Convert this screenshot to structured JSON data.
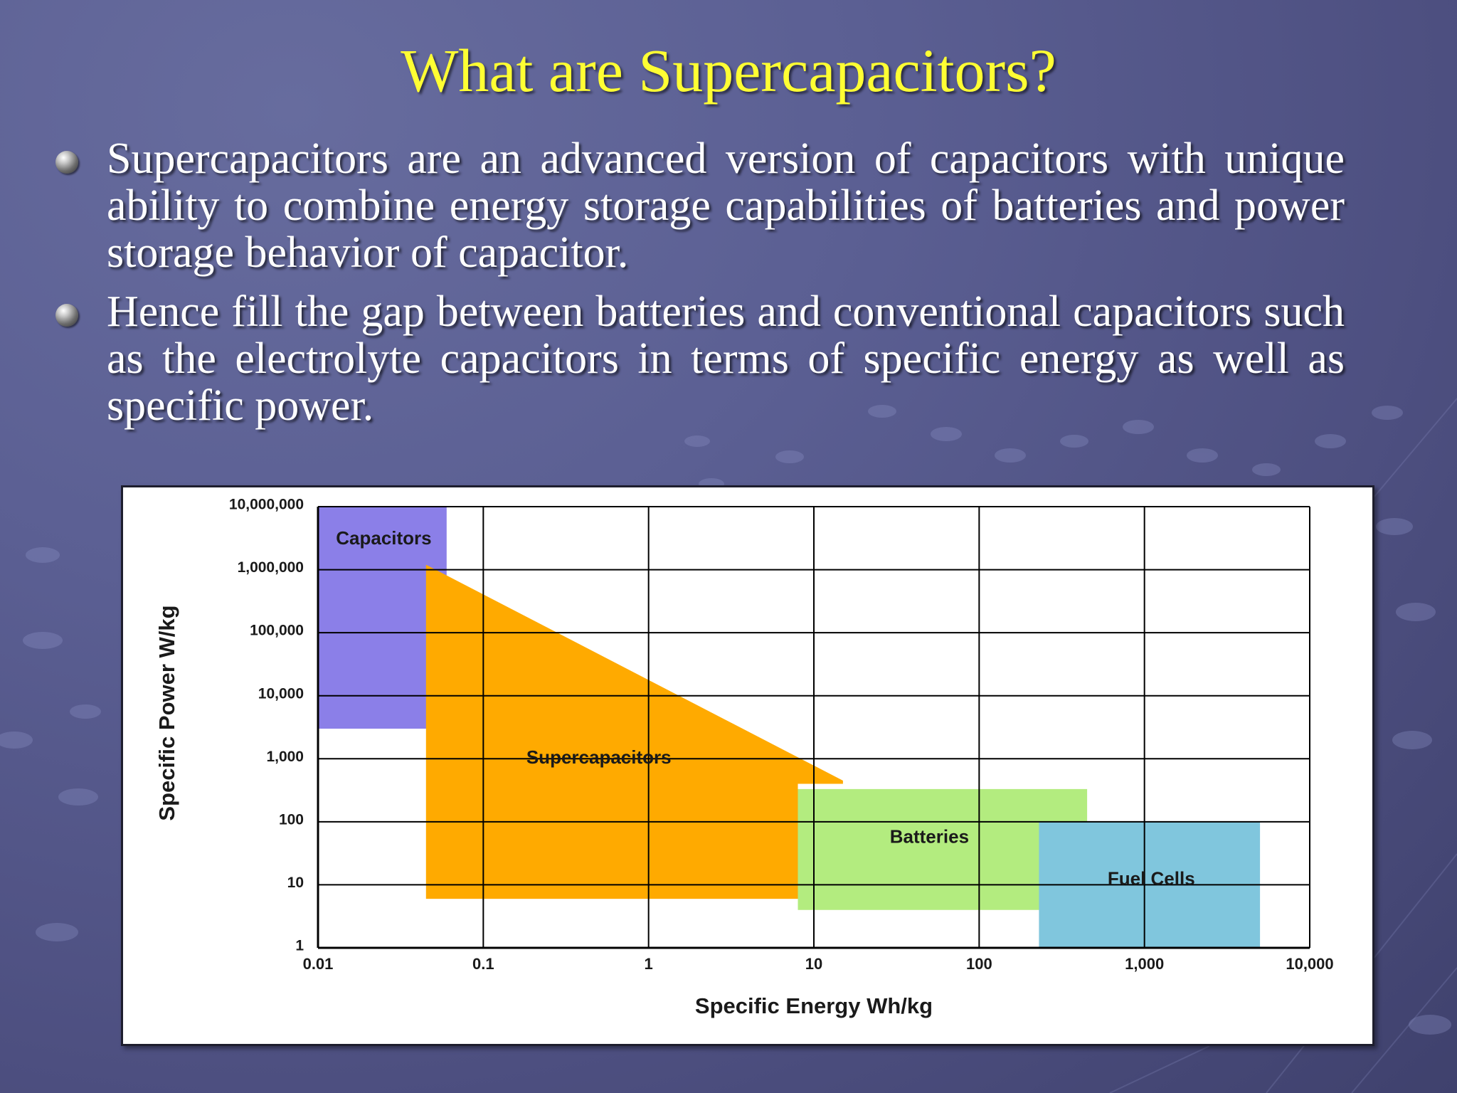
{
  "slide": {
    "title": "What are Supercapacitors?",
    "bullets": [
      "Supercapacitors are an advanced version of capacitors with unique ability to combine energy storage capabilities of batteries and power storage behavior of capacitor.",
      "Hence fill the gap between batteries and conventional capacitors such as the electrolyte capacitors in terms of specific energy as well as specific power."
    ],
    "colors": {
      "title": "#ffff33",
      "text": "#ffffff",
      "background": "#5b5f93"
    }
  },
  "chart_data": {
    "type": "area",
    "title": "",
    "xlabel": "Specific Energy Wh/kg",
    "ylabel": "Specific Power W/kg",
    "x_scale": "log",
    "y_scale": "log",
    "xlim": [
      0.01,
      10000
    ],
    "ylim": [
      1,
      10000000
    ],
    "x_ticks": [
      0.01,
      0.1,
      1,
      10,
      100,
      1000,
      10000
    ],
    "x_tick_labels": [
      "0.01",
      "0.1",
      "1",
      "10",
      "100",
      "1,000",
      "10,000"
    ],
    "y_ticks": [
      1,
      10,
      100,
      1000,
      10000,
      100000,
      1000000,
      10000000
    ],
    "y_tick_labels": [
      "1",
      "10",
      "100",
      "1,000",
      "10,000",
      "100,000",
      "1,000,000",
      "10,000,000"
    ],
    "grid": true,
    "regions": [
      {
        "name": "Capacitors",
        "color": "#8b7fe8",
        "points": [
          [
            0.01,
            3000
          ],
          [
            0.01,
            10000000
          ],
          [
            0.06,
            10000000
          ],
          [
            0.06,
            3000
          ]
        ],
        "label_at": [
          0.025,
          3000000
        ]
      },
      {
        "name": "Supercapacitors",
        "color": "#ffaa00",
        "points": [
          [
            0.045,
            6
          ],
          [
            0.045,
            1200000
          ],
          [
            15,
            450
          ],
          [
            15,
            400
          ],
          [
            8,
            400
          ],
          [
            8,
            6
          ]
        ],
        "label_at": [
          0.5,
          1000
        ]
      },
      {
        "name": "Batteries",
        "color": "#b3ec7f",
        "points": [
          [
            8,
            4
          ],
          [
            8,
            330
          ],
          [
            450,
            330
          ],
          [
            450,
            4
          ]
        ],
        "label_at": [
          50,
          55
        ]
      },
      {
        "name": "Fuel Cells",
        "color": "#80c6dd",
        "points": [
          [
            230,
            1
          ],
          [
            230,
            100
          ],
          [
            5000,
            100
          ],
          [
            5000,
            1
          ]
        ],
        "label_at": [
          1100,
          12
        ]
      }
    ]
  }
}
